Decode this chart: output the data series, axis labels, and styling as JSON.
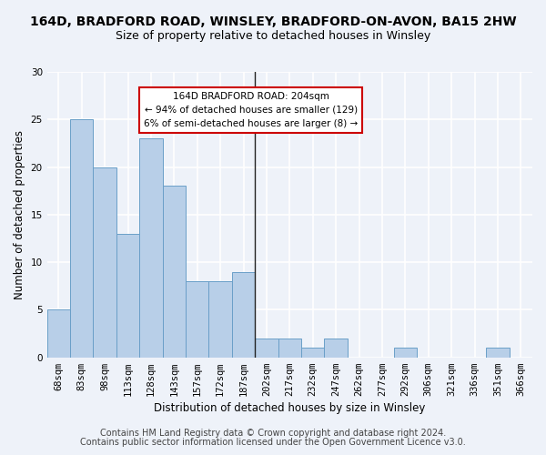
{
  "title1": "164D, BRADFORD ROAD, WINSLEY, BRADFORD-ON-AVON, BA15 2HW",
  "title2": "Size of property relative to detached houses in Winsley",
  "xlabel": "Distribution of detached houses by size in Winsley",
  "ylabel": "Number of detached properties",
  "categories": [
    "68sqm",
    "83sqm",
    "98sqm",
    "113sqm",
    "128sqm",
    "143sqm",
    "157sqm",
    "172sqm",
    "187sqm",
    "202sqm",
    "217sqm",
    "232sqm",
    "247sqm",
    "262sqm",
    "277sqm",
    "292sqm",
    "306sqm",
    "321sqm",
    "336sqm",
    "351sqm",
    "366sqm"
  ],
  "values": [
    5,
    25,
    20,
    13,
    23,
    18,
    8,
    8,
    9,
    2,
    2,
    1,
    2,
    0,
    0,
    1,
    0,
    0,
    0,
    1,
    0
  ],
  "bar_color": "#b8cfe8",
  "bar_edge_color": "#6a9fc8",
  "vline_index": 9,
  "vline_color": "#222222",
  "annotation_title": "164D BRADFORD ROAD: 204sqm",
  "annotation_line1": "← 94% of detached houses are smaller (129)",
  "annotation_line2": "6% of semi-detached houses are larger (8) →",
  "annotation_box_color": "#ffffff",
  "annotation_box_edge": "#cc0000",
  "ylim": [
    0,
    30
  ],
  "yticks": [
    0,
    5,
    10,
    15,
    20,
    25,
    30
  ],
  "footer1": "Contains HM Land Registry data © Crown copyright and database right 2024.",
  "footer2": "Contains public sector information licensed under the Open Government Licence v3.0.",
  "background_color": "#eef2f9",
  "grid_color": "#ffffff",
  "title_fontsize": 10,
  "subtitle_fontsize": 9,
  "axis_label_fontsize": 8.5,
  "tick_fontsize": 7.5,
  "footer_fontsize": 7
}
